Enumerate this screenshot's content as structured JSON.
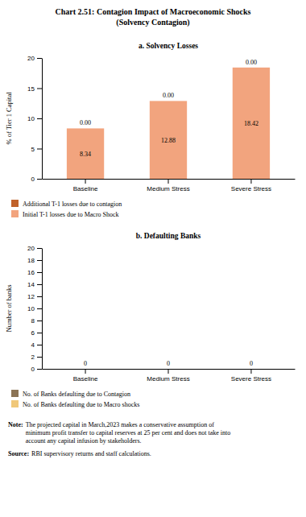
{
  "title": "Chart 2.51: Contagion Impact of Macroeconomic Shocks",
  "subtitle": "(Solvency Contagion)",
  "annotations": [
    {
      "label": "Note:",
      "text": "The projected capital in March,2023 makes a conservative assumption of\nminimum profit transfer to capital reserves at 25 per cent and does not take into\naccount any capital infusion by stakeholders."
    },
    {
      "label": "Source:",
      "text": "RBI supervisory returns and staff calculations."
    }
  ],
  "chart_data": [
    {
      "type": "bar",
      "title": "a. Solvency Losses",
      "stacked": true,
      "data_labels": true,
      "grid": false,
      "legend": "bottom",
      "categories": [
        "Baseline",
        "Medium Stress",
        "Severe Stress"
      ],
      "series": [
        {
          "name": "Initial T-1 losses due to Macro Shock",
          "color": "#F2A47E",
          "values": [
            8.34,
            12.88,
            18.42
          ]
        },
        {
          "name": "Additional T-1 losses due to contagion",
          "color": "#C0622A",
          "values": [
            0.0,
            0.0,
            0.0
          ],
          "value_labels": [
            "0.00",
            "0.00",
            "0.00"
          ]
        }
      ],
      "ylabel": "% of Tier 1 Capital",
      "ylim": [
        0,
        20
      ],
      "yticks": [
        0,
        5,
        10,
        15,
        20
      ]
    },
    {
      "type": "bar",
      "title": "b. Defaulting Banks",
      "stacked": false,
      "data_labels": true,
      "grid": false,
      "legend": "bottom",
      "categories": [
        "Baseline",
        "Medium Stress",
        "Severe Stress"
      ],
      "series": [
        {
          "name": "No. of Banks defaulting due to Contagion",
          "color": "#8B7355",
          "values": [
            0,
            0,
            0
          ]
        },
        {
          "name": "No. of Banks defaulting due to Macro shocks",
          "color": "#F0C87A",
          "values": [
            0,
            0,
            0
          ]
        }
      ],
      "ylabel": "Number of banks",
      "ylim": [
        0,
        20
      ],
      "yticks": [
        0,
        2,
        4,
        6,
        8,
        10,
        12,
        14,
        16,
        18,
        20
      ]
    }
  ]
}
